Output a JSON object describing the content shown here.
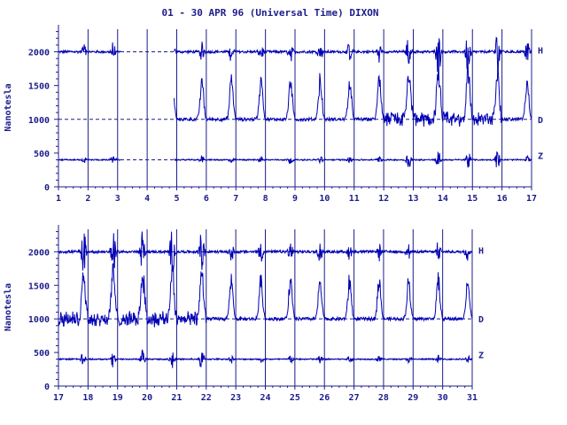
{
  "title": "01 - 30 APR 96 (Universal Time) DIXON",
  "colors": {
    "ink": "#1c1c8c",
    "trace": "#0000b4",
    "background": "#ffffff"
  },
  "chart_data": [
    {
      "type": "line",
      "ylabel": "Nanotesla",
      "ylim": [
        0,
        2400
      ],
      "yticks": [
        0,
        500,
        1000,
        1500,
        2000
      ],
      "xlim": [
        1,
        17
      ],
      "xticks": [
        "1",
        "2",
        "3",
        "4",
        "5",
        "6",
        "7",
        "8",
        "9",
        "10",
        "11",
        "12",
        "13",
        "14",
        "15",
        "16",
        "17"
      ],
      "baselines": [
        2000,
        1000,
        400
      ],
      "series": [
        {
          "name": "H",
          "baseline": 2000
        },
        {
          "name": "D",
          "baseline": 1000
        },
        {
          "name": "Z",
          "baseline": 400
        }
      ],
      "gaps": [
        [
          3.1,
          4.9
        ]
      ],
      "d_starts": 4.9
    },
    {
      "type": "line",
      "ylabel": "Nanotesla",
      "ylim": [
        0,
        2400
      ],
      "yticks": [
        0,
        500,
        1000,
        1500,
        2000
      ],
      "xlim": [
        17,
        31
      ],
      "xticks": [
        "17",
        "18",
        "19",
        "20",
        "21",
        "22",
        "23",
        "24",
        "25",
        "26",
        "27",
        "28",
        "29",
        "30",
        "31"
      ],
      "baselines": [
        2000,
        1000,
        400
      ],
      "series": [
        {
          "name": "H",
          "baseline": 2000
        },
        {
          "name": "D",
          "baseline": 1000
        },
        {
          "name": "Z",
          "baseline": 400
        }
      ],
      "gaps": [],
      "d_starts": 17
    }
  ]
}
